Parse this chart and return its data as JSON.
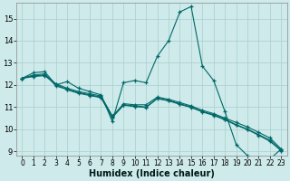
{
  "xlabel": "Humidex (Indice chaleur)",
  "xlim": [
    -0.5,
    23.5
  ],
  "ylim": [
    8.8,
    15.7
  ],
  "yticks": [
    9,
    10,
    11,
    12,
    13,
    14,
    15
  ],
  "xticks": [
    0,
    1,
    2,
    3,
    4,
    5,
    6,
    7,
    8,
    9,
    10,
    11,
    12,
    13,
    14,
    15,
    16,
    17,
    18,
    19,
    20,
    21,
    22,
    23
  ],
  "bg_color": "#ceeaea",
  "grid_color": "#aacece",
  "line_color": "#006868",
  "lines": [
    [
      12.3,
      12.55,
      12.6,
      12.0,
      12.15,
      11.85,
      11.7,
      11.55,
      10.35,
      12.1,
      12.2,
      12.1,
      13.3,
      14.0,
      15.3,
      15.55,
      12.85,
      12.2,
      10.8,
      9.3,
      8.8,
      8.6,
      8.65,
      9.1
    ],
    [
      12.3,
      12.45,
      12.5,
      11.95,
      11.8,
      11.65,
      11.55,
      11.45,
      10.55,
      11.15,
      11.1,
      11.1,
      11.45,
      11.35,
      11.2,
      11.05,
      10.85,
      10.7,
      10.5,
      10.3,
      10.1,
      9.85,
      9.6,
      9.1
    ],
    [
      12.3,
      12.4,
      12.45,
      12.05,
      11.85,
      11.7,
      11.6,
      11.5,
      10.6,
      11.1,
      11.05,
      11.0,
      11.4,
      11.3,
      11.15,
      11.0,
      10.8,
      10.65,
      10.45,
      10.2,
      10.0,
      9.75,
      9.5,
      9.05
    ],
    [
      12.3,
      12.38,
      12.42,
      12.02,
      11.78,
      11.62,
      11.52,
      11.42,
      10.52,
      11.08,
      11.02,
      10.98,
      11.38,
      11.28,
      11.12,
      10.98,
      10.78,
      10.62,
      10.42,
      10.18,
      9.98,
      9.72,
      9.45,
      9.02
    ]
  ]
}
